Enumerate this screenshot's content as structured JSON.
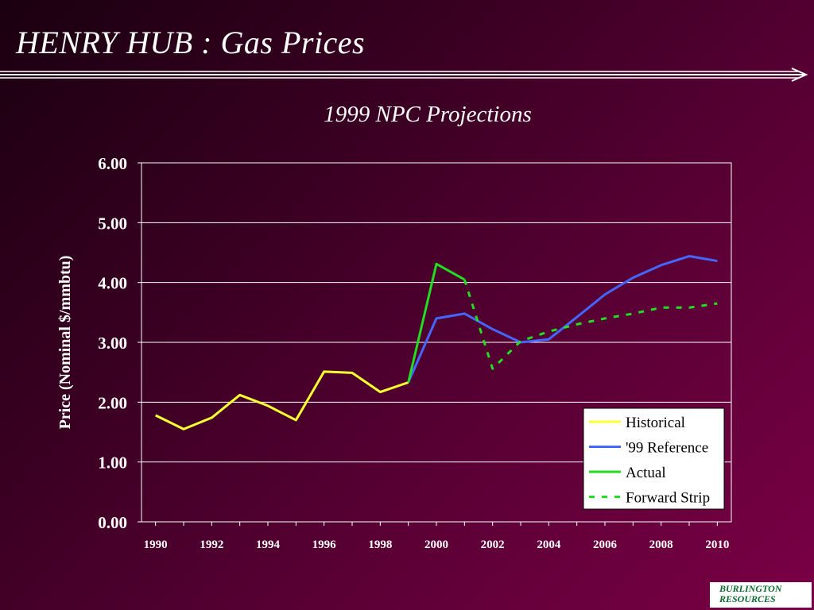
{
  "slide_title": "HENRY  HUB : Gas Prices",
  "logo_text": [
    "BURLINGTON",
    "RESOURCES"
  ],
  "colors": {
    "background": "#4a002c",
    "text": "#ffffff",
    "historical": "#ffff33",
    "reference": "#4466ff",
    "actual": "#22dd22",
    "forward": "#22dd22"
  },
  "chart_data": {
    "type": "line",
    "title": "1999 NPC Projections",
    "ylabel": "Price (Nominal $/mmbtu)",
    "xlabel": "",
    "ylim": [
      0,
      6
    ],
    "xlim": [
      1989.5,
      2010.5
    ],
    "y_ticks": [
      "0.00",
      "1.00",
      "2.00",
      "3.00",
      "4.00",
      "5.00",
      "6.00"
    ],
    "x_ticks": [
      "1990",
      "1992",
      "1994",
      "1996",
      "1998",
      "2000",
      "2002",
      "2004",
      "2006",
      "2008",
      "2010"
    ],
    "grid": "horizontal",
    "legend_position": "bottom-right",
    "series": [
      {
        "name": "Historical",
        "style": "solid",
        "x": [
          1990,
          1991,
          1992,
          1993,
          1994,
          1995,
          1996,
          1997,
          1998,
          1999
        ],
        "y": [
          1.78,
          1.55,
          1.74,
          2.12,
          1.94,
          1.7,
          2.51,
          2.49,
          2.17,
          2.33
        ]
      },
      {
        "name": "'99 Reference",
        "style": "solid",
        "x": [
          1999,
          2000,
          2001,
          2002,
          2003,
          2004,
          2005,
          2006,
          2007,
          2008,
          2009,
          2010
        ],
        "y": [
          2.33,
          3.4,
          3.48,
          3.22,
          3.0,
          3.05,
          3.42,
          3.8,
          4.08,
          4.29,
          4.44,
          4.36
        ]
      },
      {
        "name": "Actual",
        "style": "solid",
        "x": [
          1999,
          2000,
          2001
        ],
        "y": [
          2.33,
          4.31,
          4.05
        ]
      },
      {
        "name": "Forward Strip",
        "style": "dotted",
        "x": [
          2001,
          2002,
          2003,
          2004,
          2005,
          2006,
          2007,
          2008,
          2009,
          2010
        ],
        "y": [
          4.05,
          2.56,
          3.02,
          3.18,
          3.3,
          3.4,
          3.48,
          3.58,
          3.58,
          3.65
        ]
      }
    ]
  }
}
